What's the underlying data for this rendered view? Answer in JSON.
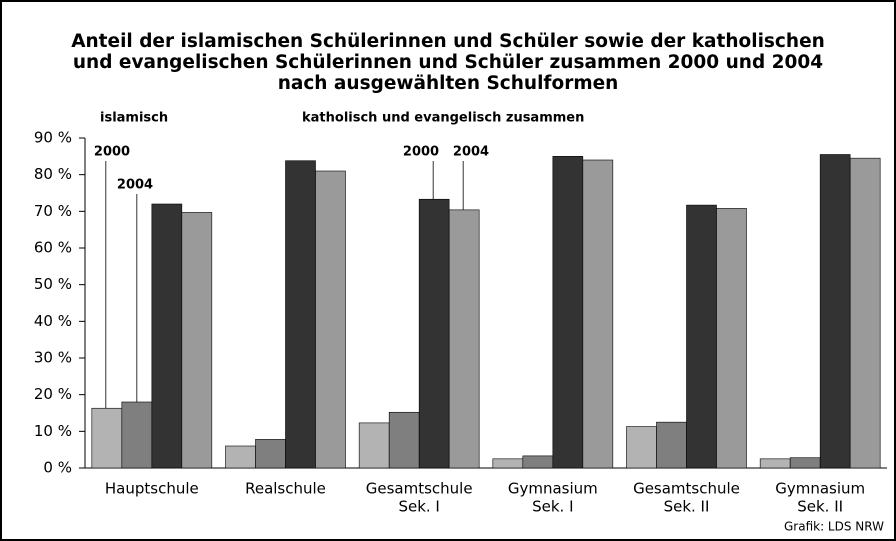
{
  "chart_data": {
    "type": "bar",
    "title": [
      "Anteil der islamischen Schülerinnen und Schüler sowie der katholischen",
      "und evangelischen Schülerinnen und Schüler zusammen 2000 und 2004",
      "nach ausgewählten Schulformen"
    ],
    "group_labels": [
      "islamisch",
      "katholisch und evangelisch zusammen"
    ],
    "year_labels": [
      "2000",
      "2004"
    ],
    "source": "Grafik: LDS NRW",
    "categories": [
      [
        "Hauptschule"
      ],
      [
        "Realschule"
      ],
      [
        "Gesamtschule",
        "Sek. I"
      ],
      [
        "Gymnasium",
        "Sek. I"
      ],
      [
        "Gesamtschule",
        "Sek. II"
      ],
      [
        "Gymnasium",
        "Sek. II"
      ]
    ],
    "series": [
      {
        "color": "#b3b3b3",
        "values": [
          16.3,
          6.0,
          12.3,
          2.5,
          11.3,
          2.5
        ]
      },
      {
        "color": "#7f7f7f",
        "values": [
          18.0,
          7.8,
          15.2,
          3.3,
          12.5,
          2.8
        ]
      },
      {
        "color": "#333333",
        "values": [
          72.0,
          83.8,
          73.3,
          85.0,
          71.7,
          85.5
        ]
      },
      {
        "color": "#9a9a9a",
        "values": [
          69.7,
          81.0,
          70.4,
          84.0,
          70.8,
          84.5
        ]
      }
    ],
    "ylim": [
      0,
      90
    ],
    "yticks": [
      {
        "value": 0,
        "label": "0 %"
      },
      {
        "value": 10,
        "label": "10 %"
      },
      {
        "value": 20,
        "label": "20 %"
      },
      {
        "value": 30,
        "label": "30 %"
      },
      {
        "value": 40,
        "label": "40 %"
      },
      {
        "value": 50,
        "label": "50 %"
      },
      {
        "value": 60,
        "label": "60 %"
      },
      {
        "value": 70,
        "label": "70 %"
      },
      {
        "value": 80,
        "label": "80 %"
      },
      {
        "value": 90,
        "label": "90 %"
      }
    ]
  }
}
